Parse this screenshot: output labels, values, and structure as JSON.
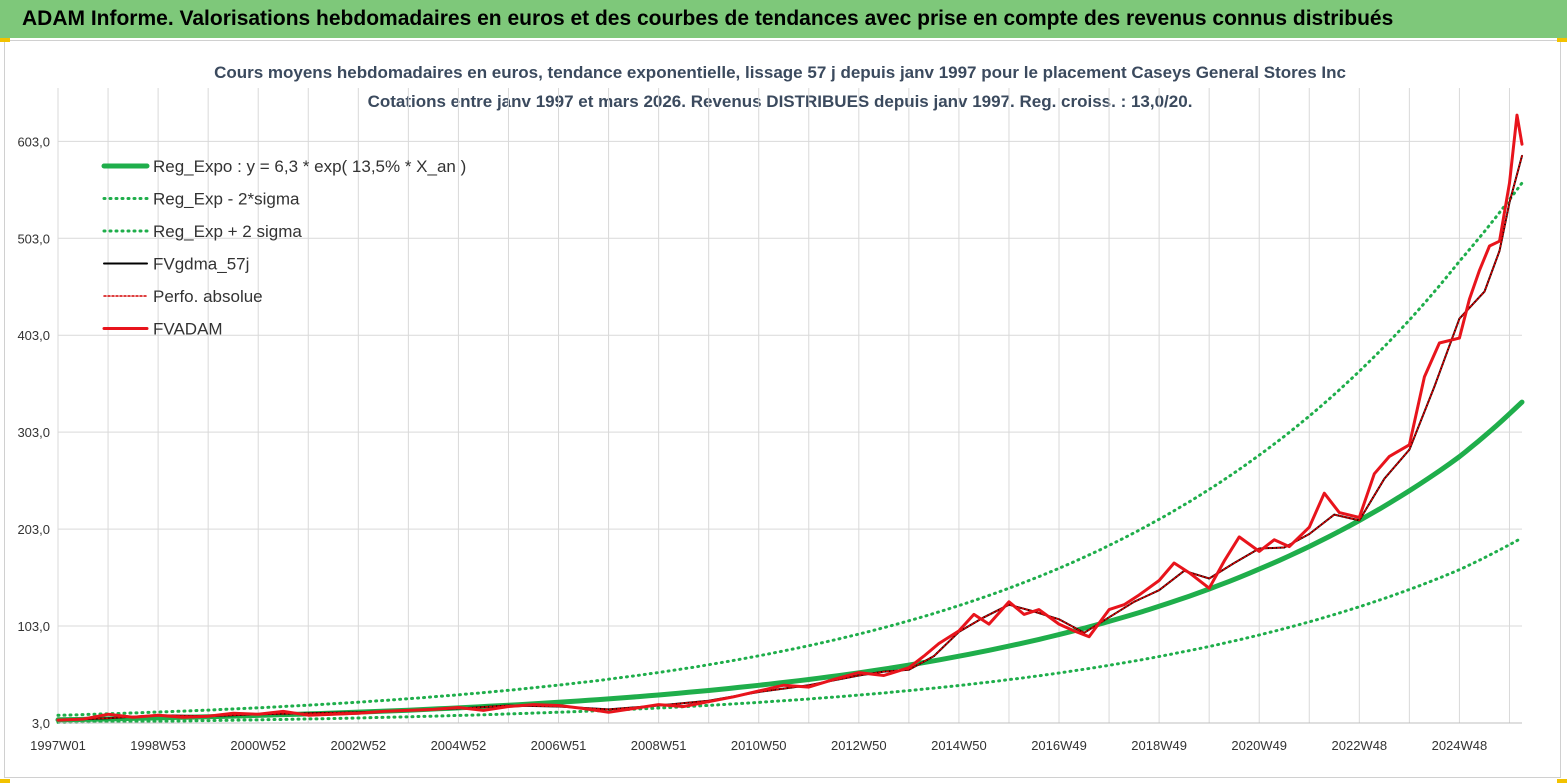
{
  "banner": {
    "title": "ADAM Informe. Valorisations hebdomadaires en euros et des courbes de tendances avec prise en compte des revenus connus distribués"
  },
  "colors": {
    "banner_bg": "#7ec87a",
    "reg_expo": "#1fae4b",
    "reg_band": "#1fae4b",
    "fvgdma": "#000000",
    "perfo": "#d40000",
    "fvadam": "#e8141c",
    "grid": "#d9d9d9"
  },
  "chart_data": {
    "type": "line",
    "title": "Cours moyens hebdomadaires en euros, tendance exponentielle, lissage 57 j depuis janv 1997 pour le placement Caseys General Stores Inc",
    "subtitle": "Cotations entre janv 1997 et mars 2026. Revenus DISTRIBUES depuis janv 1997. Reg. croiss. : 13,0/20.",
    "ylim": [
      3,
      658
    ],
    "y_ticks": [
      "3,0",
      "103,0",
      "203,0",
      "303,0",
      "403,0",
      "503,0",
      "603,0"
    ],
    "y_tick_values": [
      3,
      103,
      203,
      303,
      403,
      503,
      603
    ],
    "x_ticks": [
      "1997W01",
      "1998W53",
      "2000W52",
      "2002W52",
      "2004W52",
      "2006W51",
      "2008W51",
      "2010W50",
      "2012W50",
      "2014W50",
      "2016W49",
      "2018W49",
      "2020W49",
      "2022W48",
      "2024W48"
    ],
    "x_tick_years": [
      1997.0,
      1999.0,
      2001.0,
      2003.0,
      2005.0,
      2007.0,
      2009.0,
      2011.0,
      2013.0,
      2015.0,
      2017.0,
      2019.0,
      2021.0,
      2023.0,
      2025.0
    ],
    "x_range": [
      1997.0,
      2026.25
    ],
    "grid": true,
    "legend_position": "top-left",
    "series": [
      {
        "name": "Reg_Expo : y = 6,3 * exp( 13,5% *  X_an )",
        "style": "solid-thick",
        "x": [
          1997,
          1999,
          2001,
          2003,
          2005,
          2007,
          2009,
          2011,
          2013,
          2015,
          2017,
          2019,
          2021,
          2023,
          2025,
          2026.25
        ],
        "values": [
          6.3,
          8.3,
          10.8,
          14.2,
          18.6,
          24.4,
          31.9,
          41.9,
          54.8,
          71.9,
          94.2,
          123.4,
          161.7,
          211.9,
          277.7,
          334
        ]
      },
      {
        "name": "Reg_Exp - 2*sigma",
        "style": "dotted",
        "x": [
          1997,
          1999,
          2001,
          2003,
          2005,
          2007,
          2009,
          2011,
          2013,
          2015,
          2017,
          2019,
          2021,
          2023,
          2025,
          2026.25
        ],
        "values": [
          3.6,
          4.8,
          6.3,
          8.2,
          10.8,
          14.1,
          18.5,
          24.3,
          31.8,
          41.7,
          54.6,
          71.6,
          93.8,
          122.9,
          161.1,
          194
        ]
      },
      {
        "name": "Reg_Exp + 2 sigma",
        "style": "dotted",
        "x": [
          1997,
          1999,
          2001,
          2003,
          2005,
          2007,
          2009,
          2011,
          2013,
          2015,
          2017,
          2019,
          2021,
          2023,
          2025,
          2026.25
        ],
        "values": [
          10.9,
          14.3,
          18.7,
          24.5,
          32.1,
          42.1,
          55.1,
          72.3,
          94.7,
          124.1,
          162.6,
          213.1,
          279.2,
          365.8,
          479.2,
          560
        ]
      },
      {
        "name": "FVgdma_57j",
        "style": "solid",
        "x": [
          1997.0,
          1998.0,
          1999.0,
          2000.0,
          2001.0,
          2002.0,
          2003.0,
          2004.0,
          2005.0,
          2006.0,
          2007.0,
          2008.0,
          2009.0,
          2010.0,
          2011.0,
          2012.0,
          2013.0,
          2013.5,
          2014.0,
          2014.5,
          2015.0,
          2015.5,
          2016.0,
          2016.5,
          2017.0,
          2017.5,
          2018.0,
          2018.5,
          2019.0,
          2019.5,
          2020.0,
          2020.5,
          2021.0,
          2021.5,
          2022.0,
          2022.5,
          2023.0,
          2023.5,
          2024.0,
          2024.5,
          2025.0,
          2025.5,
          2025.8,
          2026.0,
          2026.25
        ],
        "values": [
          6,
          8,
          11,
          10,
          12,
          13,
          14,
          16,
          18,
          21,
          20,
          17,
          21,
          26,
          35,
          42,
          52,
          56,
          58,
          72,
          97,
          112,
          125,
          118,
          110,
          96,
          112,
          128,
          140,
          160,
          152,
          168,
          183,
          184,
          198,
          218,
          212,
          255,
          285,
          350,
          420,
          448,
          490,
          540,
          588
        ]
      },
      {
        "name": "Perfo. absolue",
        "style": "dotted",
        "x": [
          1997.0,
          1998.0,
          1999.0,
          2000.0,
          2001.0,
          2002.0,
          2003.0,
          2004.0,
          2005.0,
          2006.0,
          2007.0,
          2008.0,
          2009.0,
          2010.0,
          2011.0,
          2012.0,
          2013.0,
          2013.5,
          2014.0,
          2014.5,
          2015.0,
          2015.5,
          2016.0,
          2016.5,
          2017.0,
          2017.5,
          2018.0,
          2018.5,
          2019.0,
          2019.5,
          2020.0,
          2020.5,
          2021.0,
          2021.5,
          2022.0,
          2022.5,
          2023.0,
          2023.5,
          2024.0,
          2024.5,
          2025.0,
          2025.5,
          2025.8,
          2026.0,
          2026.25
        ],
        "values": [
          6,
          8,
          11,
          10,
          12,
          13,
          14,
          16,
          18,
          21,
          20,
          17,
          21,
          26,
          35,
          42,
          52,
          56,
          58,
          72,
          97,
          112,
          125,
          118,
          110,
          96,
          112,
          128,
          140,
          160,
          152,
          168,
          183,
          184,
          198,
          218,
          212,
          255,
          285,
          350,
          420,
          448,
          490,
          540,
          588
        ]
      },
      {
        "name": "FVADAM",
        "style": "solid-thick",
        "x": [
          1997.0,
          1997.5,
          1998.0,
          1998.5,
          1999.0,
          1999.5,
          2000.0,
          2000.5,
          2001.0,
          2001.5,
          2002.0,
          2002.5,
          2003.0,
          2003.5,
          2004.0,
          2004.5,
          2005.0,
          2005.5,
          2006.0,
          2006.5,
          2007.0,
          2007.5,
          2008.0,
          2008.5,
          2009.0,
          2009.5,
          2010.0,
          2010.5,
          2011.0,
          2011.5,
          2012.0,
          2012.5,
          2013.0,
          2013.5,
          2014.0,
          2014.3,
          2014.6,
          2015.0,
          2015.3,
          2015.6,
          2016.0,
          2016.3,
          2016.6,
          2017.0,
          2017.3,
          2017.6,
          2018.0,
          2018.3,
          2018.6,
          2019.0,
          2019.3,
          2019.6,
          2020.0,
          2020.3,
          2020.6,
          2021.0,
          2021.3,
          2021.6,
          2022.0,
          2022.3,
          2022.6,
          2023.0,
          2023.3,
          2023.6,
          2024.0,
          2024.3,
          2024.6,
          2025.0,
          2025.2,
          2025.4,
          2025.6,
          2025.8,
          2026.0,
          2026.15,
          2026.25
        ],
        "values": [
          6,
          7,
          12,
          9,
          11,
          9,
          10,
          13,
          12,
          15,
          11,
          12,
          13,
          15,
          16,
          17,
          19,
          16,
          20,
          22,
          21,
          18,
          14,
          18,
          22,
          20,
          25,
          30,
          36,
          42,
          40,
          48,
          55,
          52,
          60,
          72,
          85,
          98,
          115,
          105,
          128,
          115,
          120,
          105,
          98,
          92,
          120,
          125,
          135,
          150,
          168,
          158,
          142,
          170,
          195,
          180,
          192,
          185,
          205,
          240,
          220,
          215,
          260,
          278,
          290,
          360,
          395,
          400,
          440,
          470,
          495,
          500,
          560,
          630,
          600
        ]
      }
    ]
  }
}
